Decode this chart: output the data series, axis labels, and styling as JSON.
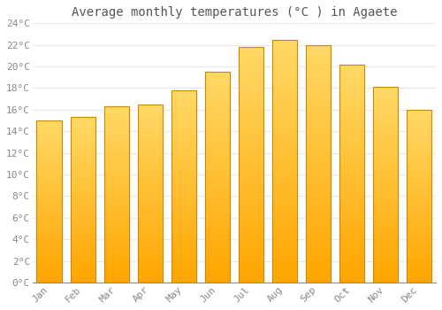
{
  "title": "Average monthly temperatures (°C ) in Agaete",
  "months": [
    "Jan",
    "Feb",
    "Mar",
    "Apr",
    "May",
    "Jun",
    "Jul",
    "Aug",
    "Sep",
    "Oct",
    "Nov",
    "Dec"
  ],
  "values": [
    15.0,
    15.3,
    16.3,
    16.5,
    17.8,
    19.5,
    21.8,
    22.5,
    22.0,
    20.2,
    18.1,
    16.0
  ],
  "bar_color_top": "#FFD966",
  "bar_color_bottom": "#FFA500",
  "bar_edge_color": "#CC8800",
  "background_color": "#FFFFFF",
  "grid_color": "#E8E8E8",
  "text_color": "#888888",
  "title_color": "#555555",
  "ylim": [
    0,
    24
  ],
  "ytick_step": 2,
  "title_fontsize": 10,
  "tick_fontsize": 8
}
